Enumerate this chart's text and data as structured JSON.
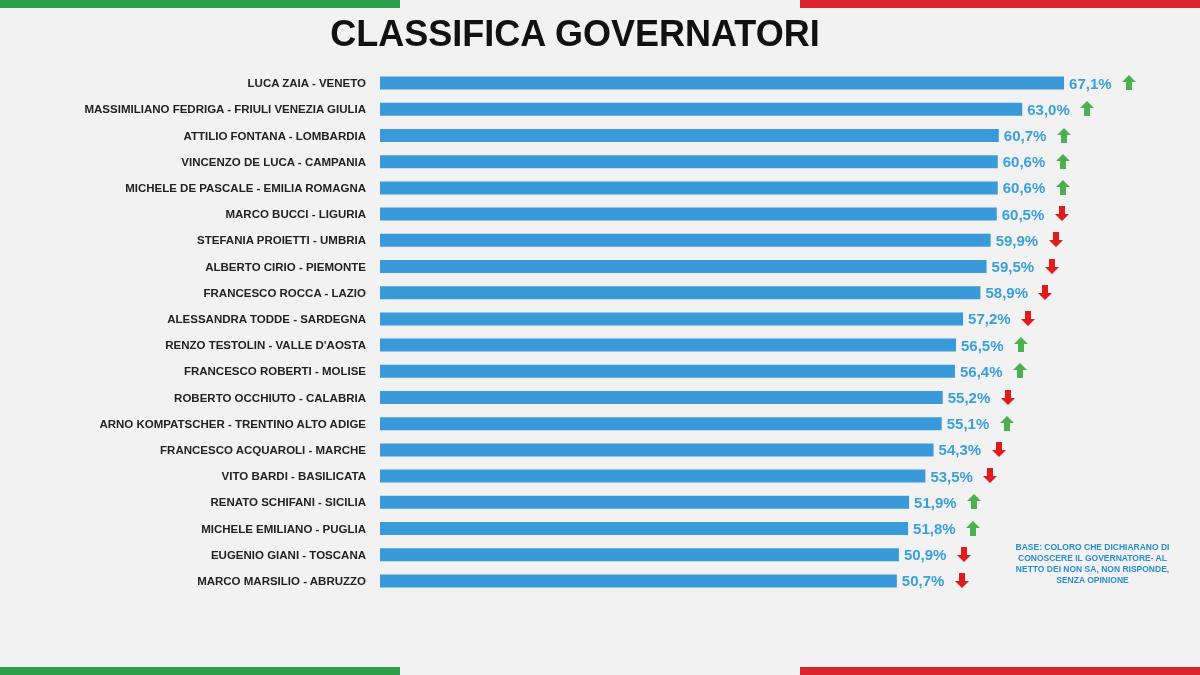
{
  "chart_data": {
    "type": "bar",
    "orientation": "horizontal",
    "title": "CLASSIFICA GOVERNATORI",
    "categories": [
      "LUCA ZAIA - VENETO",
      "MASSIMILIANO FEDRIGA - FRIULI VENEZIA GIULIA",
      "ATTILIO FONTANA - LOMBARDIA",
      "VINCENZO DE LUCA - CAMPANIA",
      "MICHELE DE PASCALE - EMILIA ROMAGNA",
      "MARCO BUCCI - LIGURIA",
      "STEFANIA PROIETTI - UMBRIA",
      "ALBERTO CIRIO - PIEMONTE",
      "FRANCESCO ROCCA - LAZIO",
      "ALESSANDRA TODDE - SARDEGNA",
      "RENZO TESTOLIN - VALLE D'AOSTA",
      "FRANCESCO ROBERTI - MOLISE",
      "ROBERTO OCCHIUTO - CALABRIA",
      "ARNO KOMPATSCHER - TRENTINO ALTO ADIGE",
      "FRANCESCO ACQUAROLI - MARCHE",
      "VITO BARDI - BASILICATA",
      "RENATO SCHIFANI - SICILIA",
      "MICHELE EMILIANO - PUGLIA",
      "EUGENIO GIANI - TOSCANA",
      "MARCO MARSILIO - ABRUZZO"
    ],
    "values": [
      67.1,
      63.0,
      60.7,
      60.6,
      60.6,
      60.5,
      59.9,
      59.5,
      58.9,
      57.2,
      56.5,
      56.4,
      55.2,
      55.1,
      54.3,
      53.5,
      51.9,
      51.8,
      50.9,
      50.7
    ],
    "value_labels": [
      "67,1%",
      "63,0%",
      "60,7%",
      "60,6%",
      "60,6%",
      "60,5%",
      "59,9%",
      "59,5%",
      "58,9%",
      "57,2%",
      "56,5%",
      "56,4%",
      "55,2%",
      "55,1%",
      "54,3%",
      "53,5%",
      "51,9%",
      "51,8%",
      "50,9%",
      "50,7%"
    ],
    "color": "#3a9ad9",
    "tick_labels": "y",
    "grid": false,
    "annotations": [
      "BASE: COLORO CHE DICHIARANO DI CONOSCERE IL GOVERNATORE- AL NETTO DEI NON SA, NON RISPONDE, SENZA OPINIONE"
    ]
  }
}
